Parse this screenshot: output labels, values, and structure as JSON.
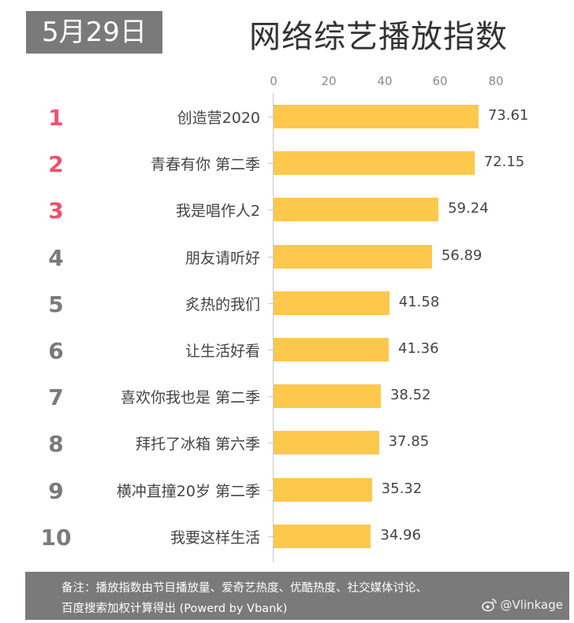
{
  "header": {
    "date": "5月29日",
    "title": "网络综艺播放指数"
  },
  "axis": {
    "ticks": [
      "0",
      "20",
      "40",
      "60",
      "80"
    ]
  },
  "rows": [
    {
      "rank": "1",
      "name": "创造营2020",
      "value": "73.61"
    },
    {
      "rank": "2",
      "name": "青春有你 第二季",
      "value": "72.15"
    },
    {
      "rank": "3",
      "name": "我是唱作人2",
      "value": "59.24"
    },
    {
      "rank": "4",
      "name": "朋友请听好",
      "value": "56.89"
    },
    {
      "rank": "5",
      "name": "炙热的我们",
      "value": "41.58"
    },
    {
      "rank": "6",
      "name": "让生活好看",
      "value": "41.36"
    },
    {
      "rank": "7",
      "name": "喜欢你我也是 第二季",
      "value": "38.52"
    },
    {
      "rank": "8",
      "name": "拜托了冰箱 第六季",
      "value": "37.85"
    },
    {
      "rank": "9",
      "name": "横冲直撞20岁 第二季",
      "value": "35.32"
    },
    {
      "rank": "10",
      "name": "我要这样生活",
      "value": "34.96"
    }
  ],
  "footer": {
    "note_line1": "备注：播放指数由节目播放量、爱奇艺热度、优酷热度、社交媒体讨论、",
    "note_line2": "百度搜索加权计算得出  (Powerd by Vbank)",
    "watermark": "@Vlinkage",
    "watermark_icon": "weibo-icon"
  },
  "colors": {
    "bar": "#fec84c",
    "top_rank": "#f0506e",
    "rank": "#7a7a7a",
    "badge_bg": "#7a7a7a",
    "footer_bg": "#7a7a7a"
  },
  "chart_data": {
    "type": "bar",
    "orientation": "horizontal",
    "title": "网络综艺播放指数",
    "subtitle": "5月29日",
    "categories": [
      "创造营2020",
      "青春有你 第二季",
      "我是唱作人2",
      "朋友请听好",
      "炙热的我们",
      "让生活好看",
      "喜欢你我也是 第二季",
      "拜托了冰箱 第六季",
      "横冲直撞20岁 第二季",
      "我要这样生活"
    ],
    "values": [
      73.61,
      72.15,
      59.24,
      56.89,
      41.58,
      41.36,
      38.52,
      37.85,
      35.32,
      34.96
    ],
    "xlabel": "",
    "ylabel": "",
    "xlim": [
      0,
      80
    ],
    "xticks": [
      0,
      20,
      40,
      60,
      80
    ],
    "axis_position": "top",
    "grid": false,
    "legend": null,
    "data_labels": true,
    "annotation": "备注：播放指数由节目播放量、爱奇艺热度、优酷热度、社交媒体讨论、百度搜索加权计算得出 (Powerd by Vbank)"
  }
}
